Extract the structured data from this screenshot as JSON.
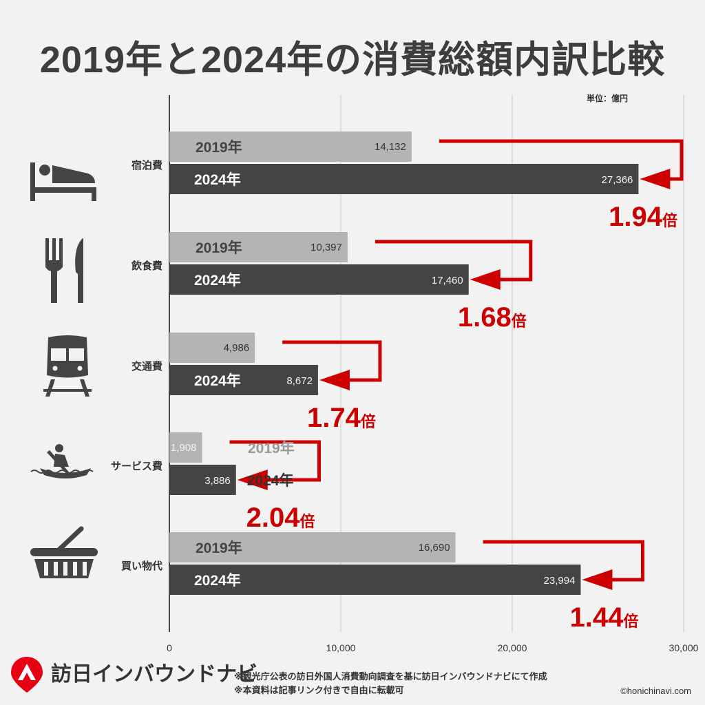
{
  "title": "2019年と2024年の消費総額内訳比較",
  "unit": "単位：億円",
  "footer": {
    "brand": "訪日インバウンドナビ",
    "note1": "※観光庁公表の訪日外国人消費動向調査を基に訪日インバウンドナビにて作成",
    "note2": "※本資料は記事リンク付きで自由に転載可",
    "credit": "©honichinavi.com"
  },
  "colors": {
    "bar2019": "#b4b4b4",
    "bar2024": "#444444",
    "arrow": "#cc0000",
    "grid": "#d6d6d6"
  },
  "chart_data": {
    "type": "bar",
    "orientation": "horizontal",
    "title": "2019年と2024年の消費総額内訳比較",
    "unit": "単位：億円",
    "categories": [
      "宿泊費",
      "飲食費",
      "交通費",
      "サービス費",
      "買い物代"
    ],
    "category_icons": [
      "bed-icon",
      "fork-knife-icon",
      "train-icon",
      "rowing-boat-icon",
      "shopping-basket-icon"
    ],
    "series": [
      {
        "name": "2019年",
        "values": [
          14132,
          10397,
          4986,
          1908,
          16690
        ],
        "value_labels": [
          "14,132",
          "10,397",
          "4,986",
          "1,908",
          "16,690"
        ]
      },
      {
        "name": "2024年",
        "values": [
          27366,
          17460,
          8672,
          3886,
          23994
        ],
        "value_labels": [
          "27,366",
          "17,460",
          "8,672",
          "3,886",
          "23,994"
        ]
      }
    ],
    "ratios": [
      "1.94",
      "1.68",
      "1.74",
      "2.04",
      "1.44"
    ],
    "ratio_suffix": "倍",
    "xlim": [
      0,
      30000
    ],
    "xticks": [
      0,
      10000,
      20000,
      30000
    ],
    "xtick_labels": [
      "0",
      "10,000",
      "20,000",
      "30,000"
    ],
    "grid": true
  }
}
